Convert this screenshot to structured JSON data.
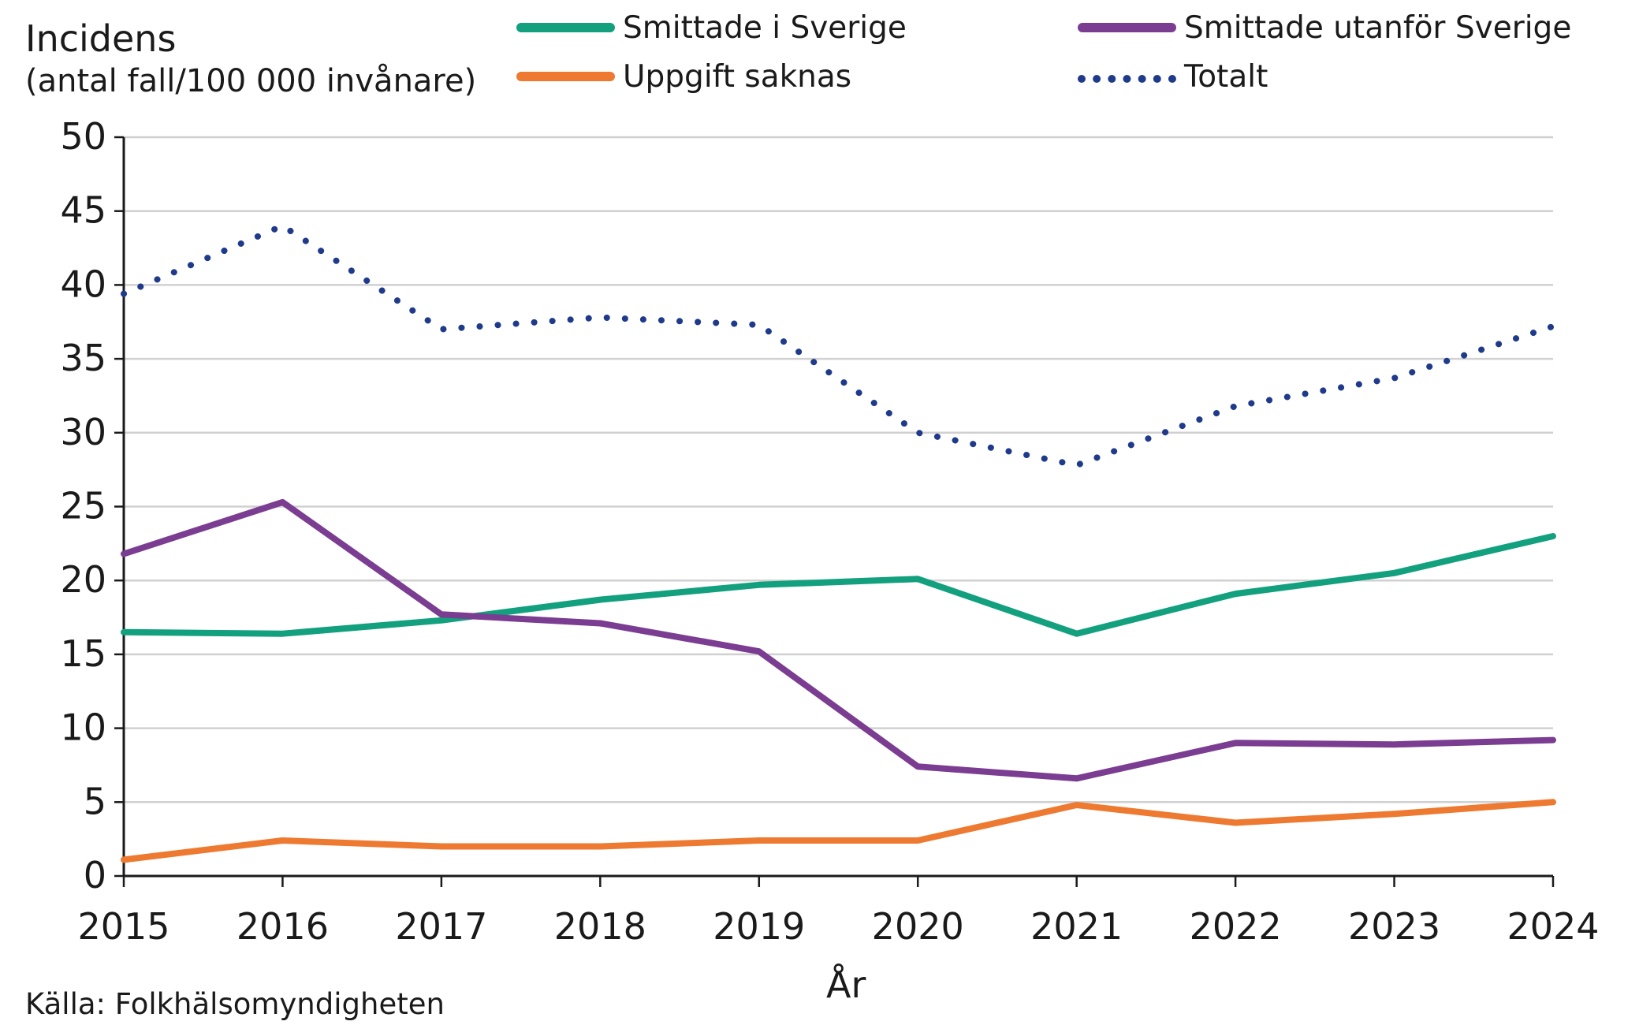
{
  "chart_data": {
    "type": "line",
    "ylabel_line1": "Incidens",
    "ylabel_line2": "(antal fall/100 000 invånare)",
    "xlabel": "År",
    "source": "Källa: Folkhälsomyndigheten",
    "x": [
      "2015",
      "2016",
      "2017",
      "2018",
      "2019",
      "2020",
      "2021",
      "2022",
      "2023",
      "2024"
    ],
    "ylim": [
      0,
      50
    ],
    "yticks": [
      0,
      5,
      10,
      15,
      20,
      25,
      30,
      35,
      40,
      45,
      50
    ],
    "grid": true,
    "legend_position": "top",
    "series": [
      {
        "name": "Smittade i Sverige",
        "color": "#13a07e",
        "style": "solid",
        "values": [
          16.5,
          16.4,
          17.3,
          18.7,
          19.7,
          20.1,
          16.4,
          19.1,
          20.5,
          23.0
        ]
      },
      {
        "name": "Smittade utanför Sverige",
        "color": "#7b3d91",
        "style": "solid",
        "values": [
          21.8,
          25.3,
          17.7,
          17.1,
          15.2,
          7.4,
          6.6,
          9.0,
          8.9,
          9.2
        ]
      },
      {
        "name": "Uppgift saknas",
        "color": "#ee7a31",
        "style": "solid",
        "values": [
          1.1,
          2.4,
          2.0,
          2.0,
          2.4,
          2.4,
          4.8,
          3.6,
          4.2,
          5.0
        ]
      },
      {
        "name": "Totalt",
        "color": "#1f3a8a",
        "style": "dotted",
        "values": [
          39.4,
          44.0,
          37.0,
          37.8,
          37.3,
          30.0,
          27.8,
          31.8,
          33.7,
          37.2
        ]
      }
    ]
  }
}
